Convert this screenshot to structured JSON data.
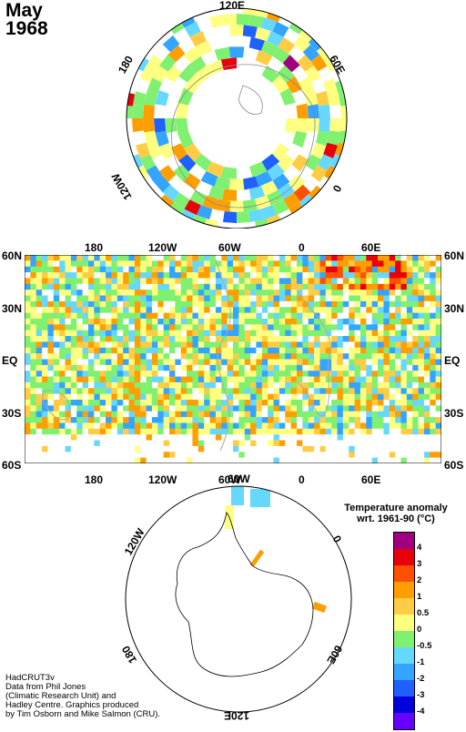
{
  "title": {
    "month": "May",
    "year": "1968"
  },
  "north_polar_map": {
    "labels": [
      "120E",
      "180",
      "60E",
      "0",
      "120W"
    ]
  },
  "global_map": {
    "top_lon_labels": [
      "180",
      "120W",
      "60W",
      "0",
      "60E"
    ],
    "bottom_lon_labels": [
      "180",
      "120W",
      "60W",
      "0",
      "60E"
    ],
    "lat_labels": [
      "60N",
      "30N",
      "EQ",
      "30S",
      "60S"
    ]
  },
  "south_polar_map": {
    "labels": [
      "60W",
      "120W",
      "0",
      "180",
      "60E",
      "120E"
    ]
  },
  "legend": {
    "title_line1": "Temperature anomaly",
    "title_line2": "wrt. 1961-90  (°C)",
    "colors": [
      "#a0007f",
      "#e8000b",
      "#ff4f00",
      "#ff9e00",
      "#ffcc44",
      "#ffff80",
      "#80f070",
      "#66d8ff",
      "#33a4ff",
      "#2060ff",
      "#0000dd",
      "#6600ff"
    ],
    "ticks": [
      "4",
      "3",
      "2",
      "1",
      "0.5",
      "0",
      "-0.5",
      "-1",
      "-2",
      "-3",
      "-4"
    ]
  },
  "credit": {
    "line1": "HadCRUT3v",
    "line2": "Data from Phil Jones",
    "line3": "(Climatic Research Unit) and",
    "line4": "Hadley Centre.  Graphics produced",
    "line5": "by Tim Osborn and Mike Salmon (CRU)."
  }
}
